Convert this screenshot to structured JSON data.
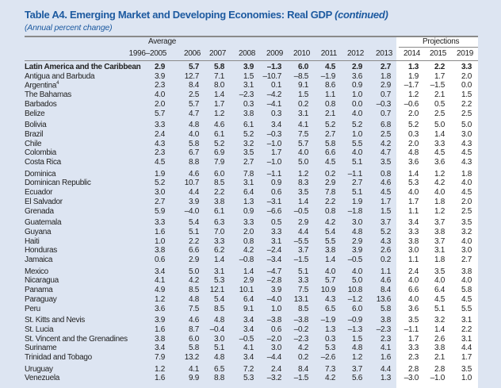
{
  "title": {
    "main": "Table A4. Emerging Market and Developing Economies: Real GDP",
    "suffix": "(continued)"
  },
  "subtitle": "(Annual percent change)",
  "header": {
    "average_label": "Average",
    "projections_label": "Projections",
    "columns": [
      "1996–2005",
      "2006",
      "2007",
      "2008",
      "2009",
      "2010",
      "2011",
      "2012",
      "2013",
      "2014",
      "2015",
      "2019"
    ]
  },
  "rows": [
    {
      "label": "Latin America and the Caribbean",
      "bold": true,
      "group": 0,
      "values": [
        "2.9",
        "5.7",
        "5.8",
        "3.9",
        "–1.3",
        "6.0",
        "4.5",
        "2.9",
        "2.7",
        "1.3",
        "2.2",
        "3.3"
      ]
    },
    {
      "label": "Antigua and Barbuda",
      "group": 0,
      "values": [
        "3.9",
        "12.7",
        "7.1",
        "1.5",
        "–10.7",
        "–8.5",
        "–1.9",
        "3.6",
        "1.8",
        "1.9",
        "1.7",
        "2.0"
      ]
    },
    {
      "label": "Argentina",
      "note": "4",
      "group": 0,
      "values": [
        "2.3",
        "8.4",
        "8.0",
        "3.1",
        "0.1",
        "9.1",
        "8.6",
        "0.9",
        "2.9",
        "–1.7",
        "–1.5",
        "0.0"
      ]
    },
    {
      "label": "The Bahamas",
      "group": 0,
      "values": [
        "4.0",
        "2.5",
        "1.4",
        "–2.3",
        "–4.2",
        "1.5",
        "1.1",
        "1.0",
        "0.7",
        "1.2",
        "2.1",
        "1.5"
      ]
    },
    {
      "label": "Barbados",
      "group": 0,
      "values": [
        "2.0",
        "5.7",
        "1.7",
        "0.3",
        "–4.1",
        "0.2",
        "0.8",
        "0.0",
        "–0.3",
        "–0.6",
        "0.5",
        "2.2"
      ]
    },
    {
      "label": "Belize",
      "group": 0,
      "values": [
        "5.7",
        "4.7",
        "1.2",
        "3.8",
        "0.3",
        "3.1",
        "2.1",
        "4.0",
        "0.7",
        "2.0",
        "2.5",
        "2.5"
      ]
    },
    {
      "label": "Bolivia",
      "group": 1,
      "values": [
        "3.3",
        "4.8",
        "4.6",
        "6.1",
        "3.4",
        "4.1",
        "5.2",
        "5.2",
        "6.8",
        "5.2",
        "5.0",
        "5.0"
      ]
    },
    {
      "label": "Brazil",
      "group": 1,
      "values": [
        "2.4",
        "4.0",
        "6.1",
        "5.2",
        "–0.3",
        "7.5",
        "2.7",
        "1.0",
        "2.5",
        "0.3",
        "1.4",
        "3.0"
      ]
    },
    {
      "label": "Chile",
      "group": 1,
      "values": [
        "4.3",
        "5.8",
        "5.2",
        "3.2",
        "–1.0",
        "5.7",
        "5.8",
        "5.5",
        "4.2",
        "2.0",
        "3.3",
        "4.3"
      ]
    },
    {
      "label": "Colombia",
      "group": 1,
      "values": [
        "2.3",
        "6.7",
        "6.9",
        "3.5",
        "1.7",
        "4.0",
        "6.6",
        "4.0",
        "4.7",
        "4.8",
        "4.5",
        "4.5"
      ]
    },
    {
      "label": "Costa Rica",
      "group": 1,
      "values": [
        "4.5",
        "8.8",
        "7.9",
        "2.7",
        "–1.0",
        "5.0",
        "4.5",
        "5.1",
        "3.5",
        "3.6",
        "3.6",
        "4.3"
      ]
    },
    {
      "label": "Dominica",
      "group": 2,
      "values": [
        "1.9",
        "4.6",
        "6.0",
        "7.8",
        "–1.1",
        "1.2",
        "0.2",
        "–1.1",
        "0.8",
        "1.4",
        "1.2",
        "1.8"
      ]
    },
    {
      "label": "Dominican Republic",
      "group": 2,
      "values": [
        "5.2",
        "10.7",
        "8.5",
        "3.1",
        "0.9",
        "8.3",
        "2.9",
        "2.7",
        "4.6",
        "5.3",
        "4.2",
        "4.0"
      ]
    },
    {
      "label": "Ecuador",
      "group": 2,
      "values": [
        "3.0",
        "4.4",
        "2.2",
        "6.4",
        "0.6",
        "3.5",
        "7.8",
        "5.1",
        "4.5",
        "4.0",
        "4.0",
        "4.5"
      ]
    },
    {
      "label": "El Salvador",
      "group": 2,
      "values": [
        "2.7",
        "3.9",
        "3.8",
        "1.3",
        "–3.1",
        "1.4",
        "2.2",
        "1.9",
        "1.7",
        "1.7",
        "1.8",
        "2.0"
      ]
    },
    {
      "label": "Grenada",
      "group": 2,
      "values": [
        "5.9",
        "–4.0",
        "6.1",
        "0.9",
        "–6.6",
        "–0.5",
        "0.8",
        "–1.8",
        "1.5",
        "1.1",
        "1.2",
        "2.5"
      ]
    },
    {
      "label": "Guatemala",
      "group": 3,
      "values": [
        "3.3",
        "5.4",
        "6.3",
        "3.3",
        "0.5",
        "2.9",
        "4.2",
        "3.0",
        "3.7",
        "3.4",
        "3.7",
        "3.5"
      ]
    },
    {
      "label": "Guyana",
      "group": 3,
      "values": [
        "1.6",
        "5.1",
        "7.0",
        "2.0",
        "3.3",
        "4.4",
        "5.4",
        "4.8",
        "5.2",
        "3.3",
        "3.8",
        "3.2"
      ]
    },
    {
      "label": "Haiti",
      "group": 3,
      "values": [
        "1.0",
        "2.2",
        "3.3",
        "0.8",
        "3.1",
        "–5.5",
        "5.5",
        "2.9",
        "4.3",
        "3.8",
        "3.7",
        "4.0"
      ]
    },
    {
      "label": "Honduras",
      "group": 3,
      "values": [
        "3.8",
        "6.6",
        "6.2",
        "4.2",
        "–2.4",
        "3.7",
        "3.8",
        "3.9",
        "2.6",
        "3.0",
        "3.1",
        "3.0"
      ]
    },
    {
      "label": "Jamaica",
      "group": 3,
      "values": [
        "0.6",
        "2.9",
        "1.4",
        "–0.8",
        "–3.4",
        "–1.5",
        "1.4",
        "–0.5",
        "0.2",
        "1.1",
        "1.8",
        "2.7"
      ]
    },
    {
      "label": "Mexico",
      "group": 4,
      "values": [
        "3.4",
        "5.0",
        "3.1",
        "1.4",
        "–4.7",
        "5.1",
        "4.0",
        "4.0",
        "1.1",
        "2.4",
        "3.5",
        "3.8"
      ]
    },
    {
      "label": "Nicaragua",
      "group": 4,
      "values": [
        "4.1",
        "4.2",
        "5.3",
        "2.9",
        "–2.8",
        "3.3",
        "5.7",
        "5.0",
        "4.6",
        "4.0",
        "4.0",
        "4.0"
      ]
    },
    {
      "label": "Panama",
      "group": 4,
      "values": [
        "4.9",
        "8.5",
        "12.1",
        "10.1",
        "3.9",
        "7.5",
        "10.9",
        "10.8",
        "8.4",
        "6.6",
        "6.4",
        "5.8"
      ]
    },
    {
      "label": "Paraguay",
      "group": 4,
      "values": [
        "1.2",
        "4.8",
        "5.4",
        "6.4",
        "–4.0",
        "13.1",
        "4.3",
        "–1.2",
        "13.6",
        "4.0",
        "4.5",
        "4.5"
      ]
    },
    {
      "label": "Peru",
      "group": 4,
      "values": [
        "3.6",
        "7.5",
        "8.5",
        "9.1",
        "1.0",
        "8.5",
        "6.5",
        "6.0",
        "5.8",
        "3.6",
        "5.1",
        "5.5"
      ]
    },
    {
      "label": "St. Kitts and Nevis",
      "group": 5,
      "values": [
        "3.9",
        "4.6",
        "4.8",
        "3.4",
        "–3.8",
        "–3.8",
        "–1.9",
        "–0.9",
        "3.8",
        "3.5",
        "3.2",
        "3.1"
      ]
    },
    {
      "label": "St. Lucia",
      "group": 5,
      "values": [
        "1.6",
        "8.7",
        "–0.4",
        "3.4",
        "0.6",
        "–0.2",
        "1.3",
        "–1.3",
        "–2.3",
        "–1.1",
        "1.4",
        "2.2"
      ]
    },
    {
      "label": "St. Vincent and the Grenadines",
      "group": 5,
      "values": [
        "3.8",
        "6.0",
        "3.0",
        "–0.5",
        "–2.0",
        "–2.3",
        "0.3",
        "1.5",
        "2.3",
        "1.7",
        "2.6",
        "3.1"
      ]
    },
    {
      "label": "Suriname",
      "group": 5,
      "values": [
        "3.4",
        "5.8",
        "5.1",
        "4.1",
        "3.0",
        "4.2",
        "5.3",
        "4.8",
        "4.1",
        "3.3",
        "3.8",
        "4.4"
      ]
    },
    {
      "label": "Trinidad and Tobago",
      "group": 5,
      "values": [
        "7.9",
        "13.2",
        "4.8",
        "3.4",
        "–4.4",
        "0.2",
        "–2.6",
        "1.2",
        "1.6",
        "2.3",
        "2.1",
        "1.7"
      ]
    },
    {
      "label": "Uruguay",
      "group": 6,
      "values": [
        "1.2",
        "4.1",
        "6.5",
        "7.2",
        "2.4",
        "8.4",
        "7.3",
        "3.7",
        "4.4",
        "2.8",
        "2.8",
        "3.5"
      ]
    },
    {
      "label": "Venezuela",
      "group": 6,
      "values": [
        "1.6",
        "9.9",
        "8.8",
        "5.3",
        "–3.2",
        "–1.5",
        "4.2",
        "5.6",
        "1.3",
        "–3.0",
        "–1.0",
        "1.0"
      ]
    }
  ]
}
